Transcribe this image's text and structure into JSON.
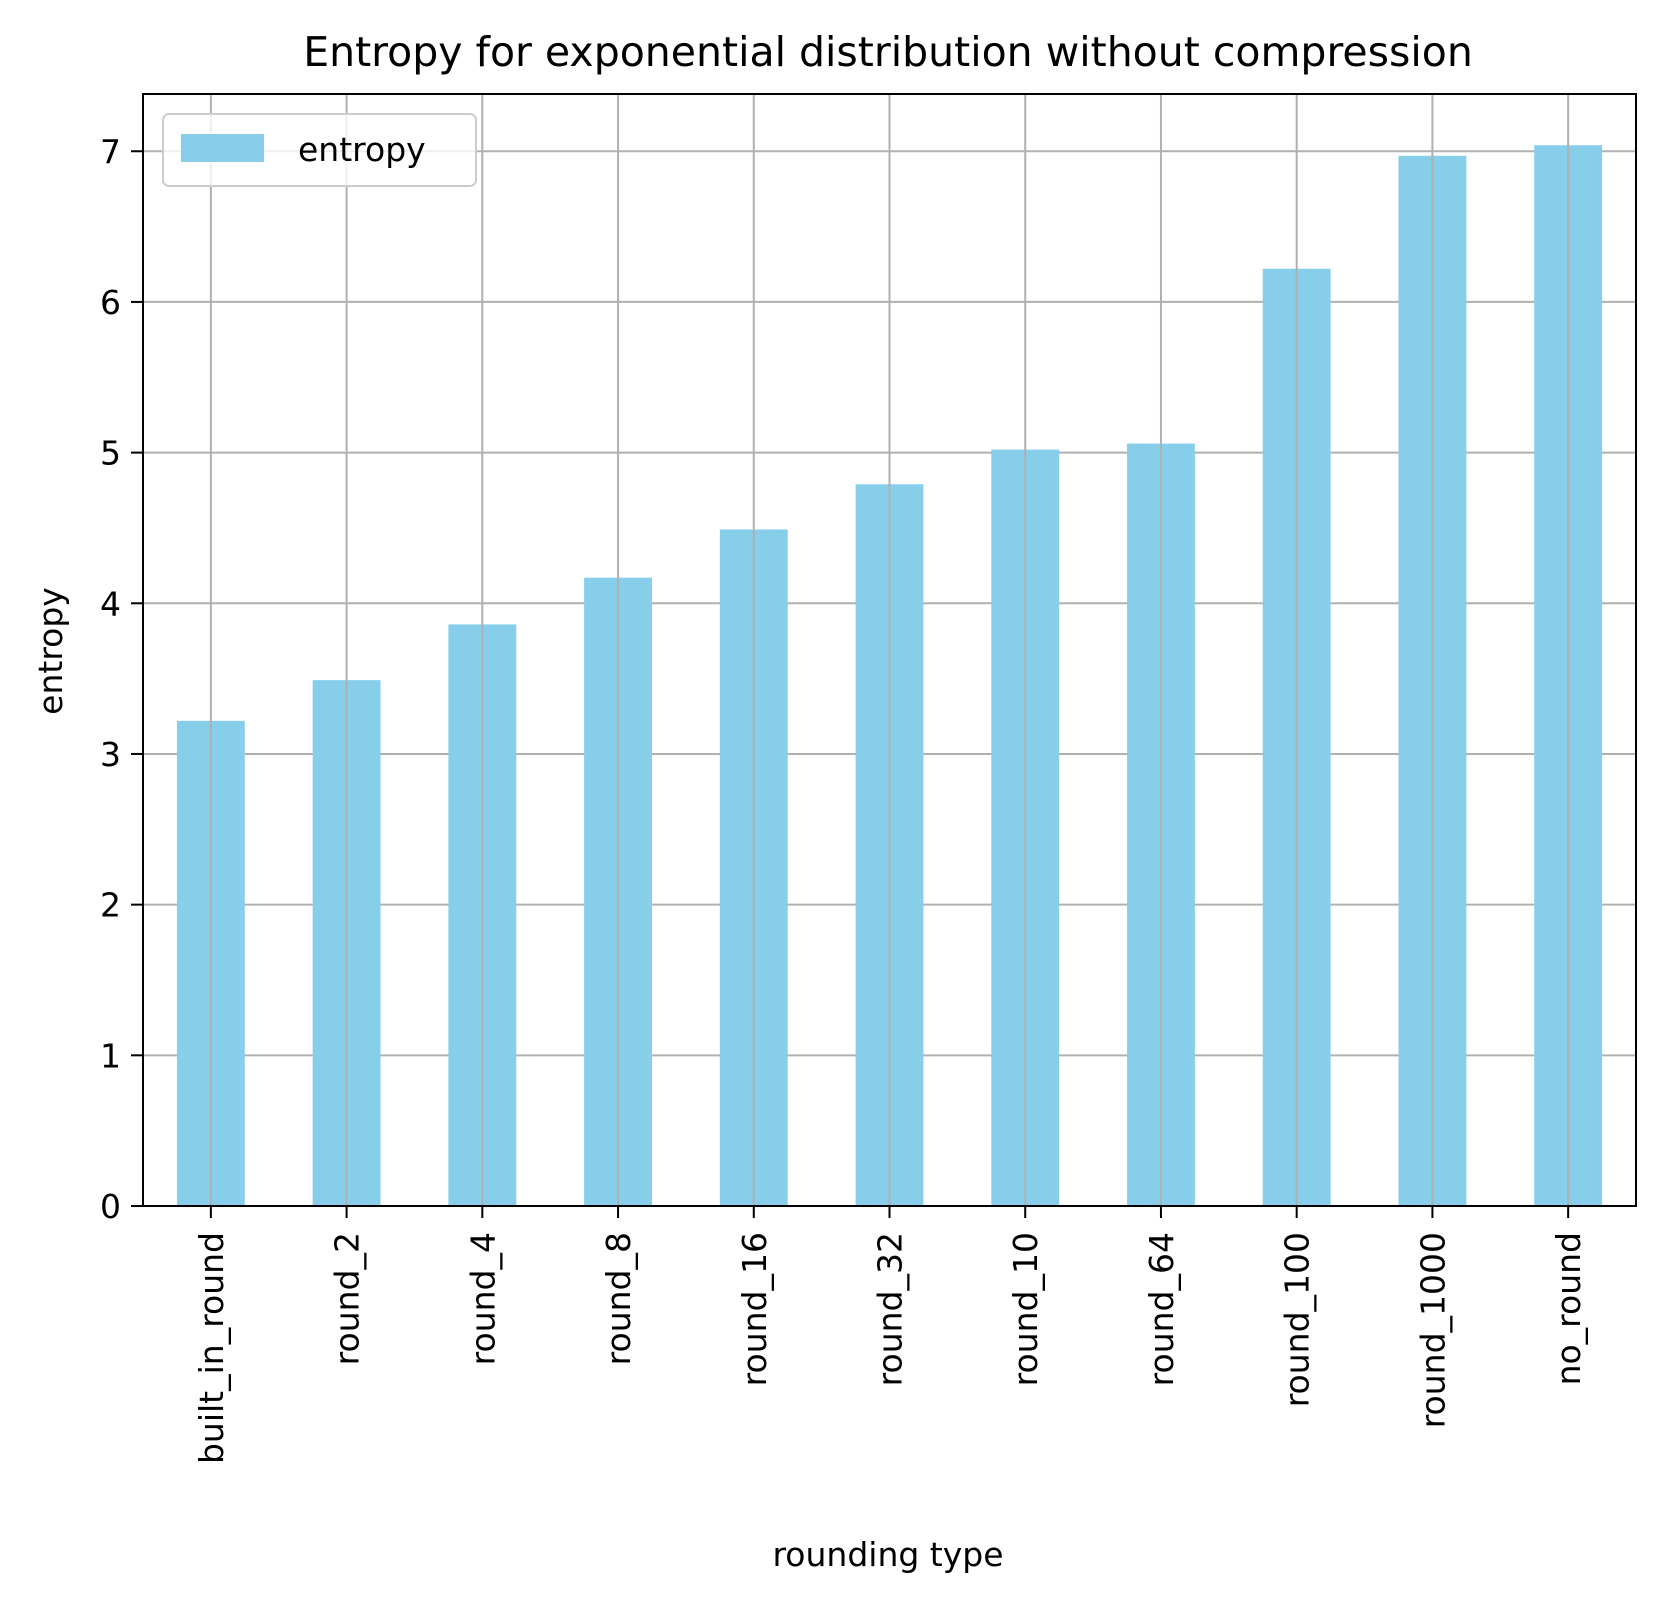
{
  "chart_data": {
    "type": "bar",
    "title": "Entropy for exponential distribution without compression",
    "xlabel": "rounding type",
    "ylabel": "entropy",
    "categories": [
      "built_in_round",
      "round_2",
      "round_4",
      "round_8",
      "round_16",
      "round_32",
      "round_10",
      "round_64",
      "round_100",
      "round_1000",
      "no_round"
    ],
    "series": [
      {
        "name": "entropy",
        "values": [
          3.22,
          3.49,
          3.86,
          4.17,
          4.49,
          4.79,
          5.02,
          5.06,
          6.22,
          6.97,
          7.04
        ]
      }
    ],
    "ylim": [
      0,
      7.38
    ],
    "yticks": [
      "0",
      "1",
      "2",
      "3",
      "4",
      "5",
      "6",
      "7"
    ],
    "grid": true,
    "legend_position": "top-left",
    "colors": {
      "bar": "#87ceeb",
      "grid": "#b0b0b0",
      "axis": "#000000"
    }
  }
}
